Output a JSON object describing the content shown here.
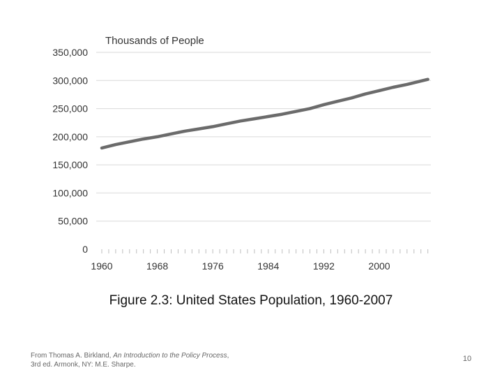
{
  "chart_data": {
    "type": "line",
    "ylabel": "Thousands of People",
    "title": "Figure 2.3: United States Population, 1960-2007",
    "ylim": [
      0,
      350000
    ],
    "yticks": [
      {
        "value": 0,
        "label": "0"
      },
      {
        "value": 50000,
        "label": "50,000"
      },
      {
        "value": 100000,
        "label": "100,000"
      },
      {
        "value": 150000,
        "label": "150,000"
      },
      {
        "value": 200000,
        "label": "200,000"
      },
      {
        "value": 250000,
        "label": "250,000"
      },
      {
        "value": 300000,
        "label": "300,000"
      },
      {
        "value": 350000,
        "label": "350,000"
      }
    ],
    "xlim": [
      1960,
      2007
    ],
    "xticks": [
      "1960",
      "1968",
      "1976",
      "1984",
      "1992",
      "2000"
    ],
    "grid": true,
    "series": [
      {
        "color": "#6b6b6b",
        "x": [
          1960,
          1962,
          1964,
          1966,
          1968,
          1970,
          1972,
          1974,
          1976,
          1978,
          1980,
          1982,
          1984,
          1986,
          1988,
          1990,
          1992,
          1994,
          1996,
          1998,
          2000,
          2002,
          2004,
          2006,
          2007
        ],
        "values": [
          180000,
          186000,
          191000,
          196000,
          200000,
          205000,
          210000,
          214000,
          218000,
          223000,
          228000,
          232000,
          236000,
          240000,
          245000,
          250000,
          257000,
          263000,
          269000,
          276000,
          282000,
          288000,
          293000,
          299000,
          302000
        ]
      }
    ]
  },
  "footer": {
    "source_prefix": "From Thomas A. Birkland, ",
    "source_title": "An Introduction to the Policy Process",
    "source_suffix": ", 3rd ed. Armonk, NY: M.E. Sharpe.",
    "page_number": "10"
  }
}
